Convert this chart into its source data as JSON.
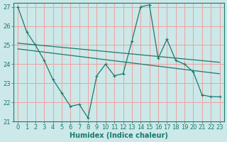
{
  "xlabel": "Humidex (Indice chaleur)",
  "ylabel": "",
  "background_color": "#cce8e8",
  "grid_color": "#f0a0a0",
  "line_color": "#1a7a6e",
  "xlim": [
    -0.5,
    23.5
  ],
  "ylim": [
    21,
    27.2
  ],
  "yticks": [
    21,
    22,
    23,
    24,
    25,
    26,
    27
  ],
  "xticks": [
    0,
    1,
    2,
    3,
    4,
    5,
    6,
    7,
    8,
    9,
    10,
    11,
    12,
    13,
    14,
    15,
    16,
    17,
    18,
    19,
    20,
    21,
    22,
    23
  ],
  "main_x": [
    0,
    1,
    2,
    3,
    4,
    5,
    6,
    7,
    8,
    9,
    10,
    11,
    12,
    13,
    14,
    15,
    16,
    17,
    18,
    19,
    20,
    21,
    22,
    23
  ],
  "main_y": [
    27.0,
    25.7,
    25.0,
    24.2,
    23.2,
    22.5,
    21.8,
    21.9,
    21.2,
    23.4,
    24.0,
    23.4,
    23.5,
    25.2,
    27.0,
    27.1,
    24.3,
    25.3,
    24.2,
    24.0,
    23.6,
    22.4,
    22.3,
    22.3
  ],
  "trend1_x": [
    0,
    23
  ],
  "trend1_y": [
    25.1,
    24.1
  ],
  "trend2_x": [
    0,
    23
  ],
  "trend2_y": [
    24.8,
    23.5
  ],
  "marker_size": 3,
  "font_size": 7,
  "tick_font_size": 6
}
